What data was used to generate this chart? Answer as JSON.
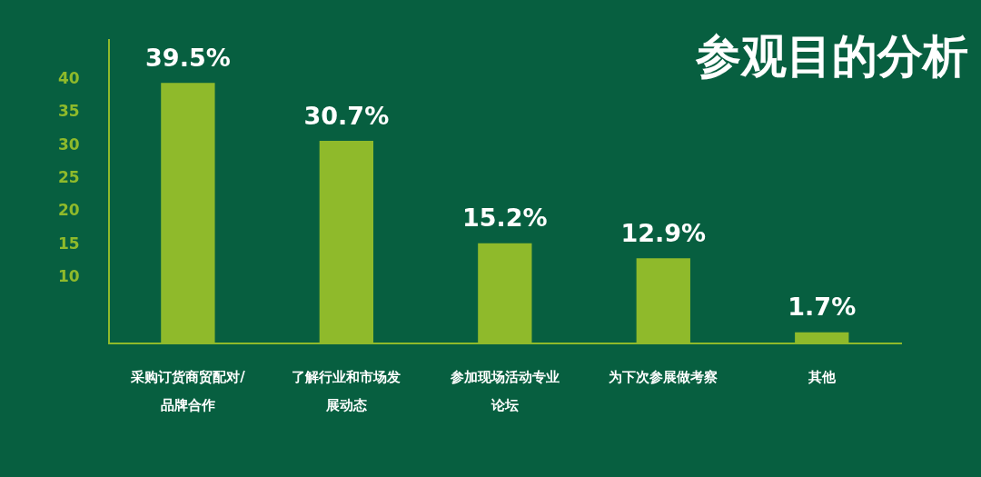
{
  "chart_data": {
    "type": "bar",
    "title": "参观目的分析",
    "categories": [
      "采购订货商贸配对/品牌合作",
      "了解行业和市场发展动态",
      "参加现场活动专业论坛",
      "为下次参展做考察",
      "其他"
    ],
    "values": [
      39.5,
      30.7,
      15.2,
      12.9,
      1.7
    ],
    "value_labels": [
      "39.5%",
      "30.7%",
      "15.2%",
      "12.9%",
      "1.7%"
    ],
    "color": "#8fba2b",
    "ylim": [
      0,
      46
    ],
    "yticks": [
      10,
      15,
      20,
      25,
      30,
      35,
      40
    ],
    "legend": false
  }
}
